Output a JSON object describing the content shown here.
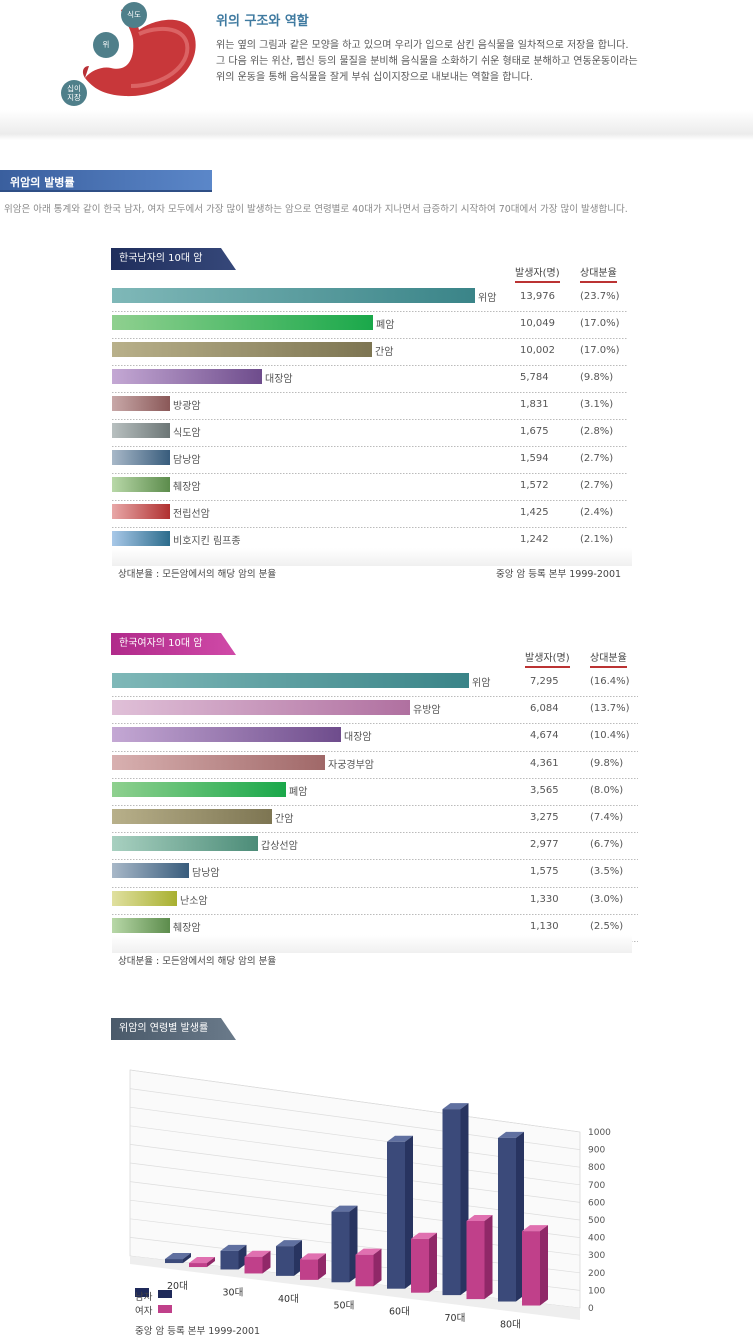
{
  "intro": {
    "bubbles": [
      "식도",
      "위",
      "십이\n지장"
    ],
    "title": "위의 구조와 역할",
    "lines": [
      "위는 옆의 그림과 같은 모양을 하고 있으며 우리가 입으로 삼킨 음식물을 일차적으로 저장을 합니다.",
      "그 다음 위는 위산, 펩신 등의 물질을 분비해 음식물을 소화하기 쉬운 형태로 분해하고 연동운동이라는",
      "위의 운동을 통해 음식물을 잘게 부숴 십이지장으로 내보내는 역할을 합니다."
    ]
  },
  "section": {
    "title": "위암의 발병률",
    "desc": "위암은 아래 통계와 같이 한국 남자, 여자 모두에서 가장 많이 발생하는 암으로 연령별로 40대가 지나면서 급증하기 시작하여 70대에서 가장 많이 발생합니다."
  },
  "male": {
    "tab": "한국남자의 10대 암",
    "col_count": "발생자(명)",
    "col_pct": "상대분율",
    "rows": [
      {
        "name": "위암",
        "count": "13,976",
        "pct": "(23.7%)",
        "value": 13976,
        "c1": "#7fb8b8",
        "c2": "#3a8488"
      },
      {
        "name": "폐암",
        "count": "10,049",
        "pct": "(17.0%)",
        "value": 10049,
        "c1": "#8fd08f",
        "c2": "#1aa84a"
      },
      {
        "name": "간암",
        "count": "10,002",
        "pct": "(17.0%)",
        "value": 10002,
        "c1": "#b8b08a",
        "c2": "#7d7552"
      },
      {
        "name": "대장암",
        "count": "5,784",
        "pct": "(9.8%)",
        "value": 5784,
        "c1": "#c4a8d4",
        "c2": "#6e4c8c"
      },
      {
        "name": "방광암",
        "count": "1,831",
        "pct": "(3.1%)",
        "value": 1831,
        "c1": "#c8a8a8",
        "c2": "#8a5858"
      },
      {
        "name": "식도암",
        "count": "1,675",
        "pct": "(2.8%)",
        "value": 1675,
        "c1": "#b8c0c0",
        "c2": "#6c7676"
      },
      {
        "name": "담낭암",
        "count": "1,594",
        "pct": "(2.7%)",
        "value": 1594,
        "c1": "#a8b8c8",
        "c2": "#385c7c"
      },
      {
        "name": "췌장암",
        "count": "1,572",
        "pct": "(2.7%)",
        "value": 1572,
        "c1": "#b8d8a8",
        "c2": "#5c8c4c"
      },
      {
        "name": "전립선암",
        "count": "1,425",
        "pct": "(2.4%)",
        "value": 1425,
        "c1": "#e8a8a8",
        "c2": "#b03030"
      },
      {
        "name": "비호지킨 림프종",
        "count": "1,242",
        "pct": "(2.1%)",
        "value": 1242,
        "c1": "#a8c8e8",
        "c2": "#2c6c8c"
      }
    ],
    "foot_left": "상대분율 : 모든암에서의 해당 암의 분율",
    "foot_right": "중앙 암 등록 본부 1999-2001"
  },
  "female": {
    "tab": "한국여자의 10대 암",
    "col_count": "발생자(명)",
    "col_pct": "상대분율",
    "rows": [
      {
        "name": "위암",
        "count": "7,295",
        "pct": "(16.4%)",
        "value": 7295,
        "c1": "#7fb8b8",
        "c2": "#3a8488"
      },
      {
        "name": "유방암",
        "count": "6,084",
        "pct": "(13.7%)",
        "value": 6084,
        "c1": "#e0c0d8",
        "c2": "#b070a0"
      },
      {
        "name": "대장암",
        "count": "4,674",
        "pct": "(10.4%)",
        "value": 4674,
        "c1": "#c4a8d4",
        "c2": "#6e4c8c"
      },
      {
        "name": "자궁경부암",
        "count": "4,361",
        "pct": "(9.8%)",
        "value": 4361,
        "c1": "#d8b0b0",
        "c2": "#a06868"
      },
      {
        "name": "폐암",
        "count": "3,565",
        "pct": "(8.0%)",
        "value": 3565,
        "c1": "#8fd08f",
        "c2": "#1aa84a"
      },
      {
        "name": "간암",
        "count": "3,275",
        "pct": "(7.4%)",
        "value": 3275,
        "c1": "#b8b08a",
        "c2": "#7d7552"
      },
      {
        "name": "갑상선암",
        "count": "2,977",
        "pct": "(6.7%)",
        "value": 2977,
        "c1": "#a8d0c0",
        "c2": "#4c8c78"
      },
      {
        "name": "담낭암",
        "count": "1,575",
        "pct": "(3.5%)",
        "value": 1575,
        "c1": "#a8b8c8",
        "c2": "#385c7c"
      },
      {
        "name": "난소암",
        "count": "1,330",
        "pct": "(3.0%)",
        "value": 1330,
        "c1": "#e0e0a0",
        "c2": "#a8b030"
      },
      {
        "name": "췌장암",
        "count": "1,130",
        "pct": "(2.5%)",
        "value": 1130,
        "c1": "#b8d8a8",
        "c2": "#5c8c4c"
      }
    ],
    "foot_left": "상대분율 : 모든암에서의 해당 암의 분율"
  },
  "age": {
    "tab": "위암의 연령별 발생률",
    "legend_male": "남자",
    "legend_female": "여자",
    "source": "중앙 암 등록 본부 1999-2001"
  },
  "chart_data": {
    "type": "bar",
    "title": "위암의 연령별 발생률",
    "categories": [
      "20대",
      "30대",
      "40대",
      "50대",
      "60대",
      "70대",
      "80대"
    ],
    "series": [
      {
        "name": "남자",
        "values": [
          5,
          100,
          160,
          380,
          790,
          1000,
          880
        ],
        "color": "#3b4a7a"
      },
      {
        "name": "여자",
        "values": [
          5,
          90,
          110,
          170,
          290,
          420,
          400
        ],
        "color": "#c0408a"
      }
    ],
    "yticks": [
      "0",
      "100",
      "200",
      "300",
      "400",
      "500",
      "600",
      "700",
      "800",
      "900",
      "1000"
    ],
    "ylim": [
      0,
      1000
    ],
    "grid": true
  }
}
